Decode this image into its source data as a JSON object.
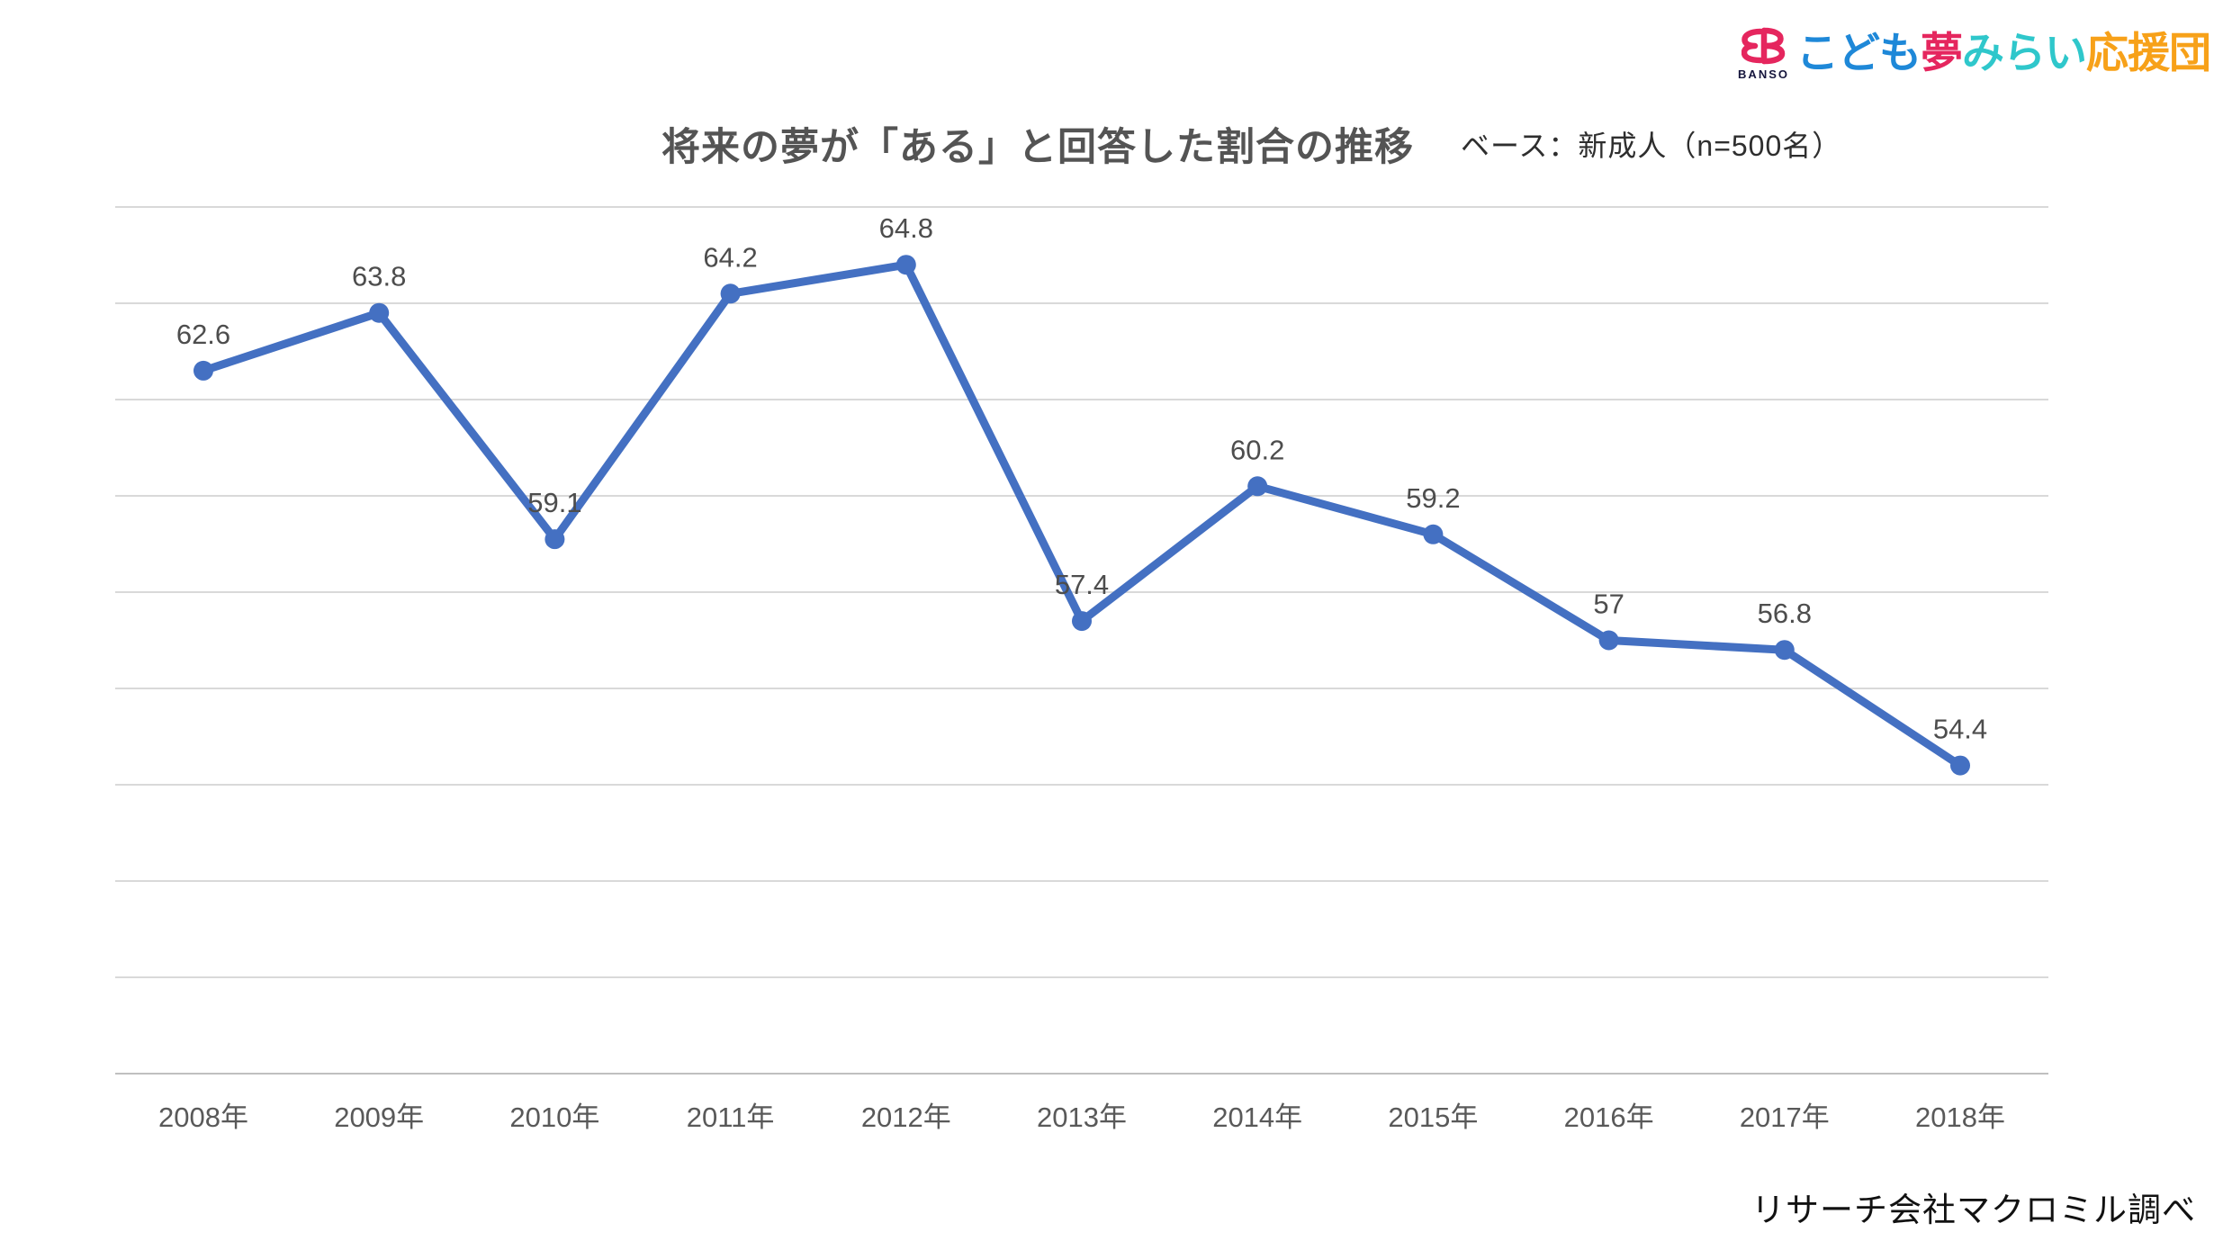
{
  "logo": {
    "mark_text": "BANSO",
    "mark_color": "#E5265E",
    "segments": [
      {
        "text": "こども",
        "color": "#1E88D8"
      },
      {
        "text": "夢",
        "color": "#E5265E"
      },
      {
        "text": "みらい",
        "color": "#2FC7CB"
      },
      {
        "text": "応援団",
        "color": "#F7A119"
      }
    ]
  },
  "header": {
    "title": "将来の夢が「ある」と回答した割合の推移",
    "subtitle": "ベース：新成人（n=500名）"
  },
  "source": "リサーチ会社マクロミル調べ",
  "chart_data": {
    "type": "line",
    "title": "将来の夢が「ある」と回答した割合の推移",
    "categories": [
      "2008年",
      "2009年",
      "2010年",
      "2011年",
      "2012年",
      "2013年",
      "2014年",
      "2015年",
      "2016年",
      "2017年",
      "2018年"
    ],
    "values": [
      62.6,
      63.8,
      59.1,
      64.2,
      64.8,
      57.4,
      60.2,
      59.2,
      57,
      56.8,
      54.4
    ],
    "labels": [
      "62.6",
      "63.8",
      "59.1",
      "64.2",
      "64.8",
      "57.4",
      "60.2",
      "59.2",
      "57",
      "56.8",
      "54.4"
    ],
    "xlabel": "",
    "ylabel": "",
    "ylim": [
      48,
      66
    ],
    "grid_step": 2,
    "grid_on": true,
    "legend": "none",
    "line_color": "#4470C2",
    "marker_color": "#4470C2",
    "grid_color": "#D9D9D9",
    "axis_color": "#C0C0C0",
    "value_label_color": "#4D4D4D",
    "tick_label_color": "#595959"
  }
}
